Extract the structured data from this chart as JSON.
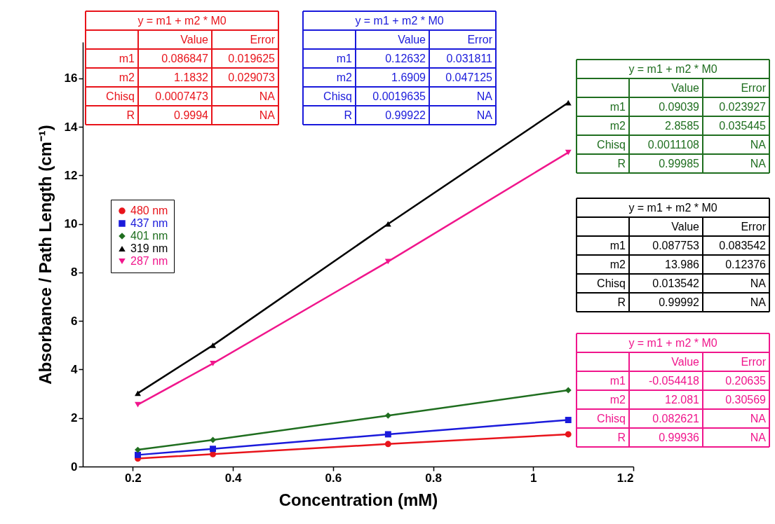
{
  "chart_data": {
    "type": "line",
    "xlabel": "Concentration (mM)",
    "ylabel": "Absorbance / Path Length (cm⁻¹)",
    "x": [
      0.21,
      0.36,
      0.71,
      1.07
    ],
    "xlim": [
      0.1,
      1.2
    ],
    "xticks": [
      0.2,
      0.4,
      0.6,
      0.8,
      1,
      1.2
    ],
    "ylim": [
      0,
      17.5
    ],
    "yticks": [
      0,
      2,
      4,
      6,
      8,
      10,
      12,
      14,
      16
    ],
    "grid": false,
    "legend": "left",
    "line_style": "solid",
    "series": [
      {
        "name": "480 nm",
        "color": "#e8141b",
        "marker": "circle",
        "values": [
          0.33,
          0.51,
          0.93,
          1.33
        ]
      },
      {
        "name": "437 nm",
        "color": "#1a1adb",
        "marker": "square",
        "values": [
          0.48,
          0.73,
          1.33,
          1.92
        ]
      },
      {
        "name": "401 nm",
        "color": "#1f6e1f",
        "marker": "diamond",
        "values": [
          0.69,
          1.1,
          2.1,
          3.15
        ]
      },
      {
        "name": "319 nm",
        "color": "#000000",
        "marker": "triangle",
        "values": [
          3.02,
          5.0,
          10.0,
          15.0
        ]
      },
      {
        "name": "287 nm",
        "color": "#f0168c",
        "marker": "triangle-down",
        "values": [
          2.55,
          4.25,
          8.45,
          12.95
        ]
      }
    ],
    "annotations": [
      "y = m1 + m2 * M0",
      "Value",
      "Error",
      "m1",
      "0.086847",
      "0.019625",
      "m2",
      "1.1832",
      "0.029073",
      "Chisq",
      "0.0007473",
      "NA",
      "R",
      "0.9994",
      "NA",
      "y = m1 + m2 * M0",
      "Value",
      "Error",
      "m1",
      "0.12632",
      "0.031811",
      "m2",
      "1.6909",
      "0.047125",
      "Chisq",
      "0.0019635",
      "NA",
      "R",
      "0.99922",
      "NA",
      "y = m1 + m2 * M0",
      "Value",
      "Error",
      "m1",
      "0.09039",
      "0.023927",
      "m2",
      "2.8585",
      "0.035445",
      "Chisq",
      "0.0011108",
      "NA",
      "R",
      "0.99985",
      "NA",
      "y = m1 + m2 * M0",
      "Value",
      "Error",
      "m1",
      "0.087753",
      "0.083542",
      "m2",
      "13.986",
      "0.12376",
      "Chisq",
      "0.013542",
      "NA",
      "R",
      "0.99992",
      "NA",
      "y = m1 + m2 * M0",
      "Value",
      "Error",
      "m1",
      "-0.054418",
      "0.20635",
      "m2",
      "12.081",
      "0.30569",
      "Chisq",
      "0.082621",
      "NA",
      "R",
      "0.99936",
      "NA"
    ]
  }
}
